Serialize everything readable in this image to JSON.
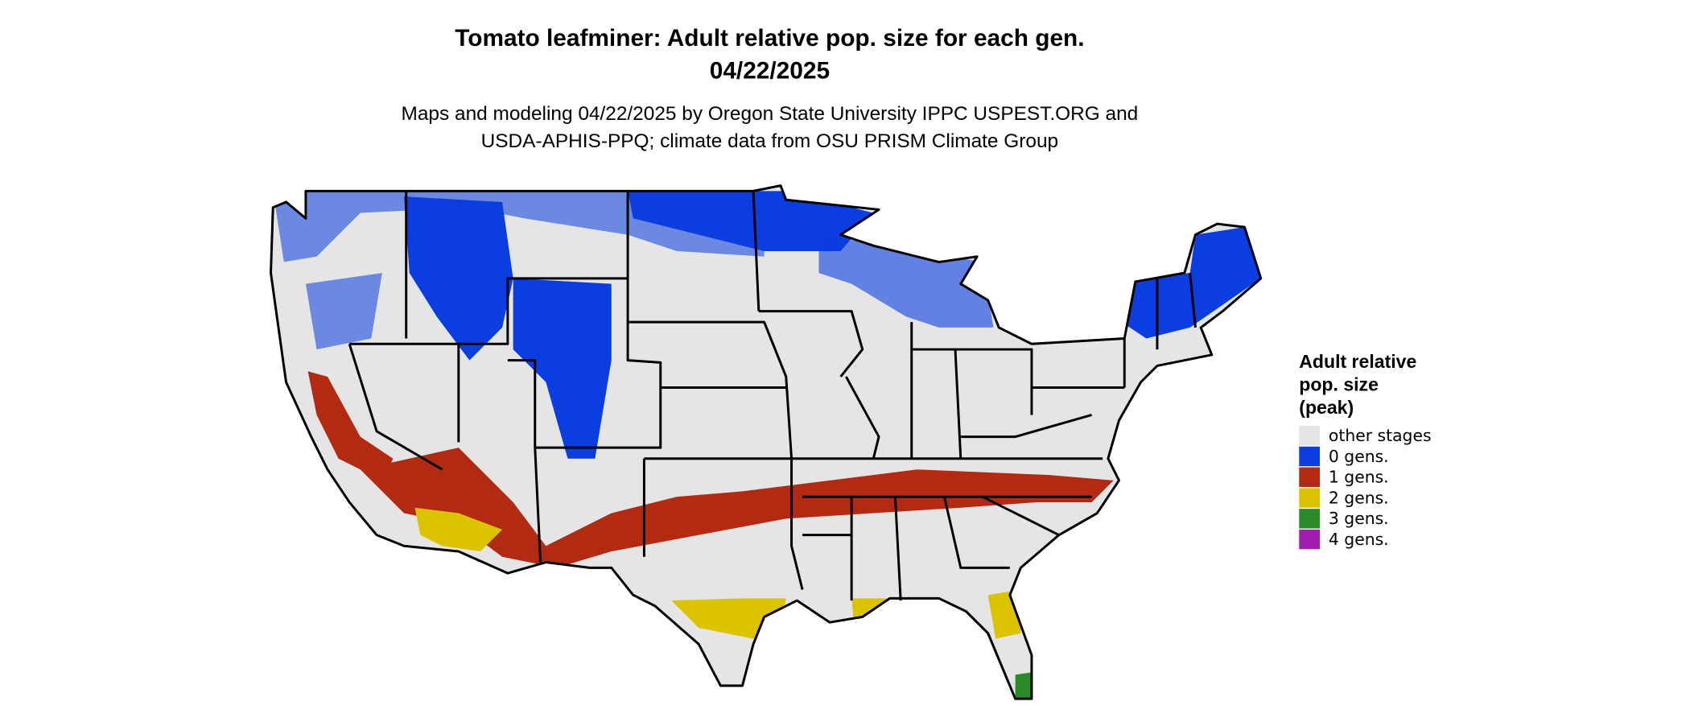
{
  "header": {
    "title": "Tomato leafminer: Adult relative pop. size for each gen.",
    "date": "04/22/2025",
    "subtitle": [
      "Maps and modeling 04/22/2025 by Oregon State University IPPC USPEST.ORG and",
      "USDA-APHIS-PPQ; climate data from OSU PRISM Climate Group"
    ]
  },
  "legend": {
    "title": [
      "Adult relative",
      "pop. size",
      "(peak)"
    ],
    "items": [
      {
        "label": "other stages",
        "color": "#e5e5e5"
      },
      {
        "label": "0 gens.",
        "color": "#0a3ee0"
      },
      {
        "label": "1 gens.",
        "color": "#b22a12"
      },
      {
        "label": "2 gens.",
        "color": "#dcc300"
      },
      {
        "label": "3 gens.",
        "color": "#2a8a2a"
      },
      {
        "label": "4 gens.",
        "color": "#a21cb0"
      }
    ]
  }
}
